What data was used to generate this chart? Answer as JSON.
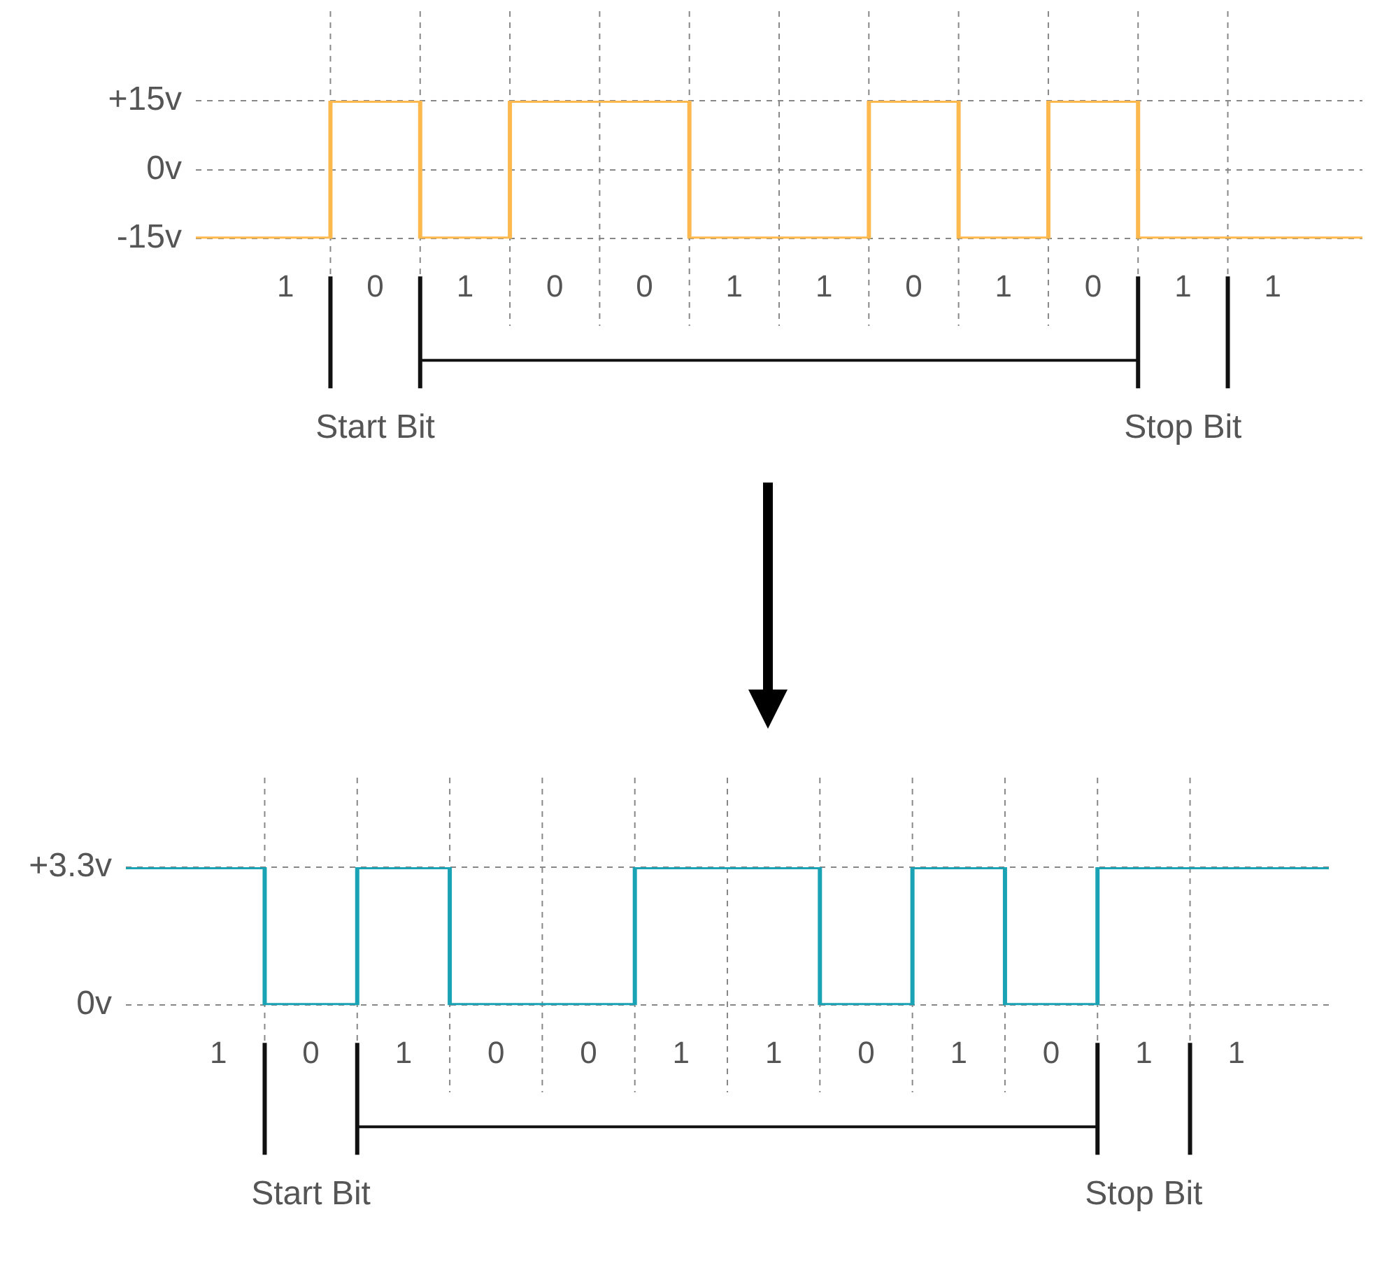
{
  "chart_data": [
    {
      "type": "step",
      "categories": [
        null,
        "1",
        "0",
        "1",
        "0",
        "0",
        "1",
        "1",
        "0",
        "1",
        "0",
        "1",
        "1",
        null
      ],
      "series": [
        {
          "color": "#fdb94e",
          "values": [
            -15,
            -15,
            15,
            -15,
            15,
            15,
            -15,
            -15,
            15,
            -15,
            15,
            -15,
            -15,
            -15
          ]
        }
      ],
      "ylim": [
        -15,
        15
      ],
      "yticks": [
        {
          "value": 15,
          "label": "+15v"
        },
        {
          "value": 0,
          "label": "0v"
        },
        {
          "value": -15,
          "label": "-15v"
        }
      ],
      "grid": true,
      "marker": "none",
      "annotations": [
        "Start Bit",
        "Stop Bit"
      ]
    },
    {
      "type": "step",
      "categories": [
        null,
        "1",
        "0",
        "1",
        "0",
        "0",
        "1",
        "1",
        "0",
        "1",
        "0",
        "1",
        "1",
        null
      ],
      "series": [
        {
          "color": "#1aa3b5",
          "values": [
            3.3,
            3.3,
            0,
            3.3,
            0,
            0,
            3.3,
            3.3,
            0,
            3.3,
            0,
            3.3,
            3.3,
            3.3
          ]
        }
      ],
      "ylim": [
        0,
        3.3
      ],
      "yticks": [
        {
          "value": 3.3,
          "label": "+3.3v"
        },
        {
          "value": 0,
          "label": "0v"
        }
      ],
      "grid": true,
      "marker": "none",
      "annotations": [
        "Start Bit",
        "Stop Bit"
      ]
    }
  ]
}
